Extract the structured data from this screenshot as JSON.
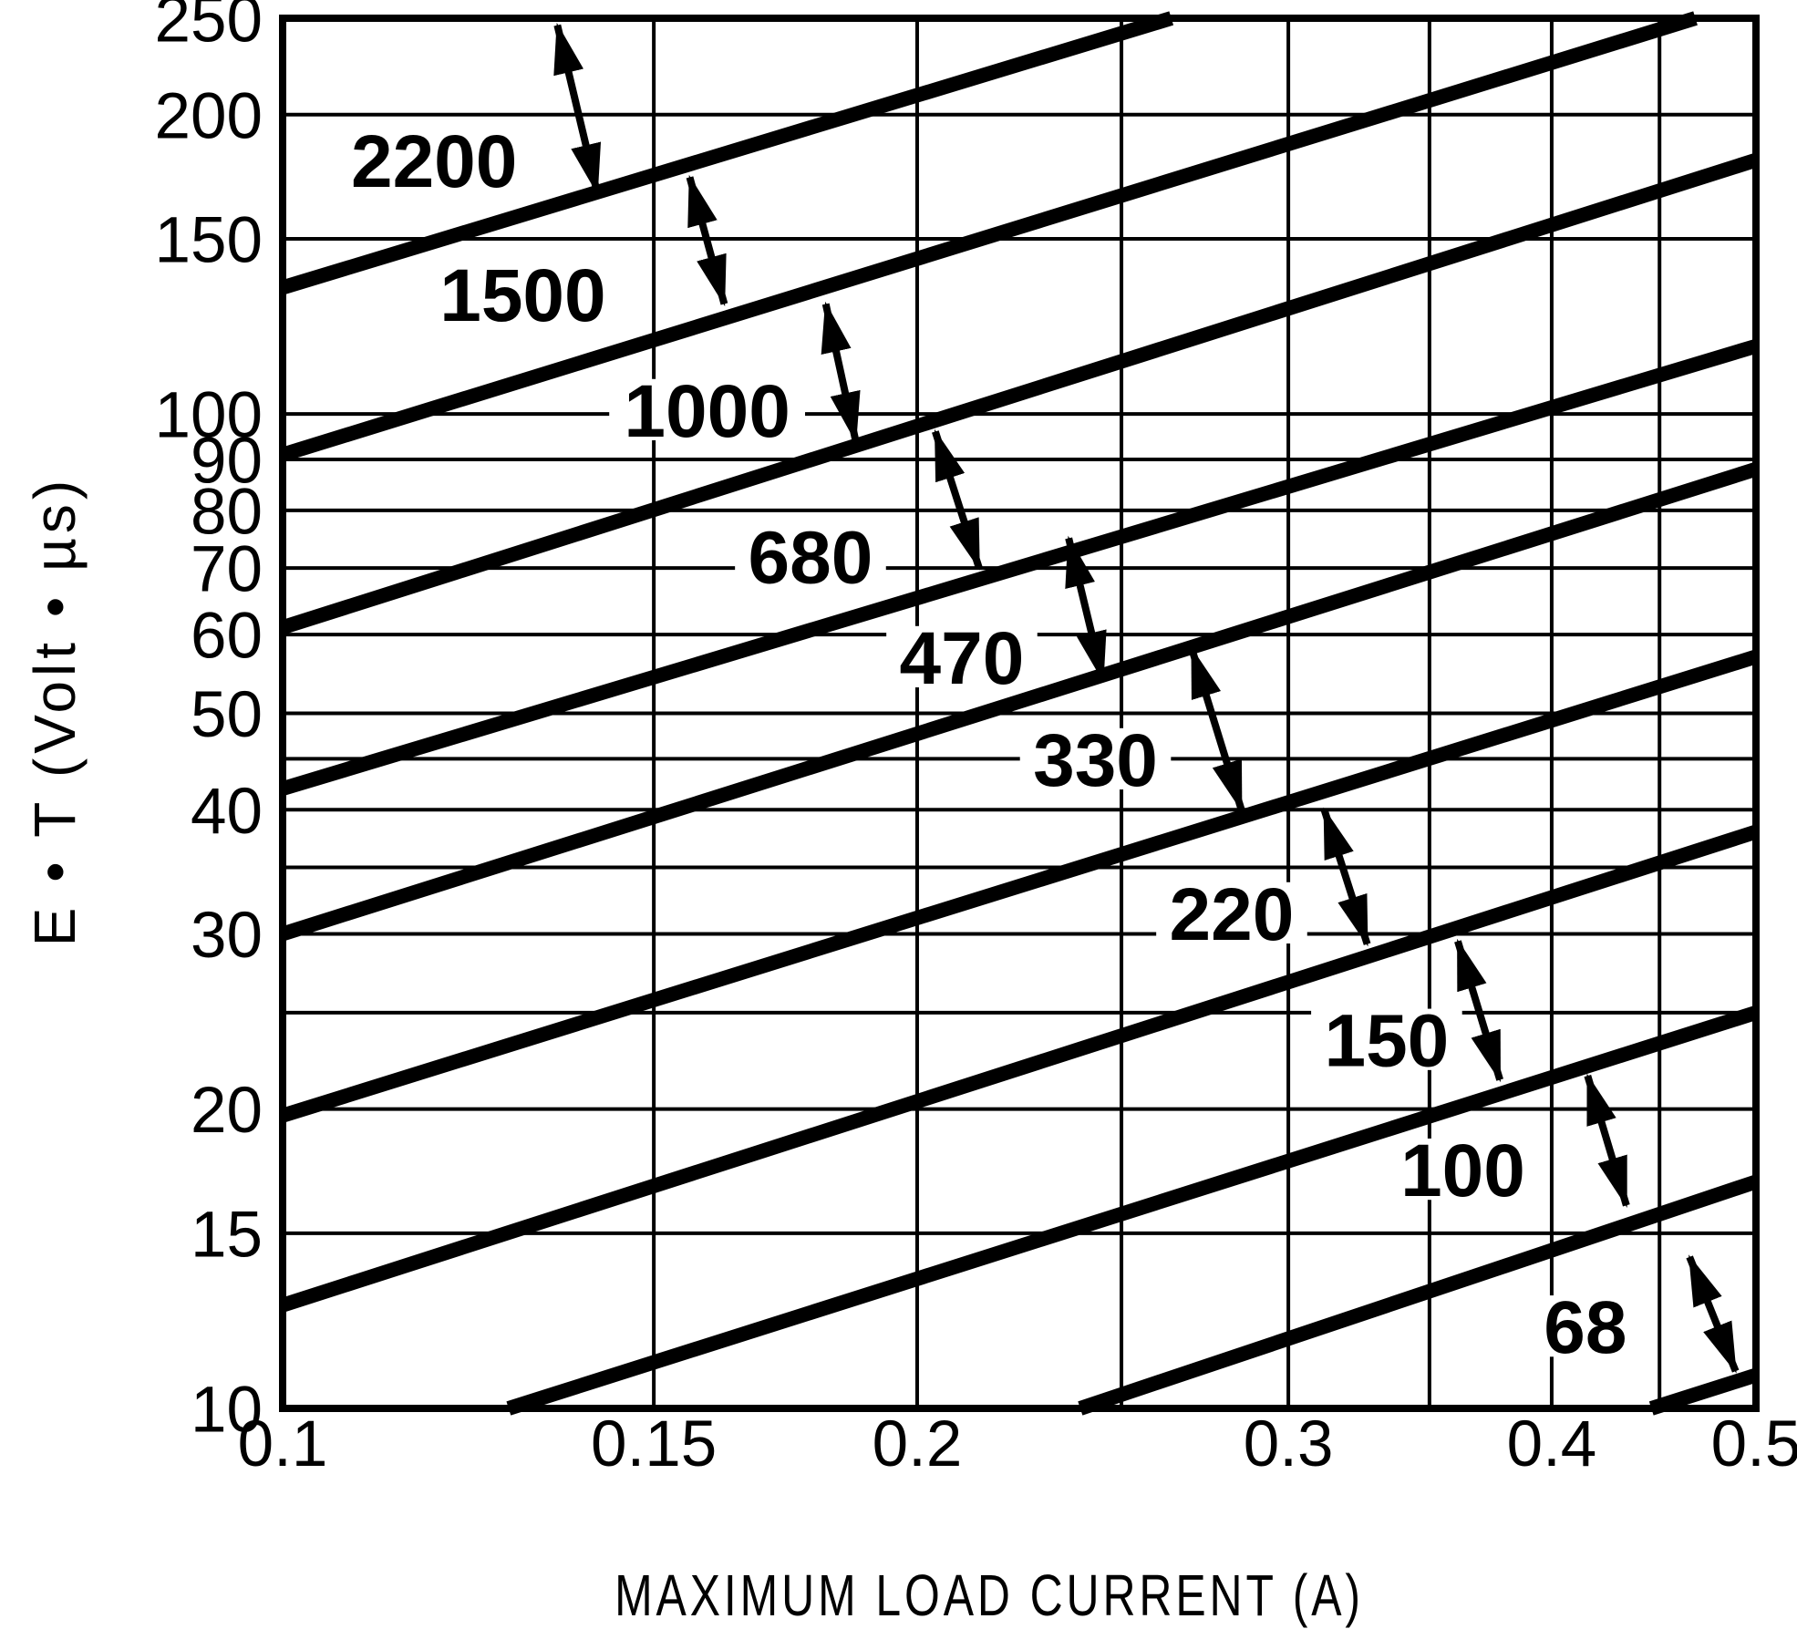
{
  "page": {
    "background": "#ffffff",
    "ink": "#000000"
  },
  "chart_data": {
    "type": "line",
    "title": "",
    "xlabel": "MAXIMUM LOAD CURRENT (A)",
    "ylabel": "E • T (Volt • µs)",
    "x_scale": "log",
    "y_scale": "log",
    "xlim": [
      0.1,
      0.5
    ],
    "ylim": [
      10,
      250
    ],
    "grid": "on",
    "legend": "inline-labels-with-arrows",
    "x_ticks": [
      {
        "v": 0.1,
        "label": "0.1"
      },
      {
        "v": 0.15,
        "label": "0.15"
      },
      {
        "v": 0.2,
        "label": "0.2"
      },
      {
        "v": 0.3,
        "label": "0.3"
      },
      {
        "v": 0.4,
        "label": "0.4"
      },
      {
        "v": 0.5,
        "label": "0.5"
      }
    ],
    "y_ticks": [
      {
        "v": 250,
        "label": "250"
      },
      {
        "v": 200,
        "label": "200"
      },
      {
        "v": 150,
        "label": "150"
      },
      {
        "v": 100,
        "label": "100"
      },
      {
        "v": 90,
        "label": "90"
      },
      {
        "v": 80,
        "label": "80"
      },
      {
        "v": 70,
        "label": "70"
      },
      {
        "v": 60,
        "label": "60"
      },
      {
        "v": 50,
        "label": "50"
      },
      {
        "v": 40,
        "label": "40"
      },
      {
        "v": 30,
        "label": "30"
      },
      {
        "v": 20,
        "label": "20"
      },
      {
        "v": 15,
        "label": "15"
      },
      {
        "v": 10,
        "label": "10"
      }
    ],
    "x_gridlines": [
      0.15,
      0.2,
      0.25,
      0.3,
      0.35,
      0.4,
      0.45
    ],
    "y_gridlines": [
      15,
      20,
      25,
      30,
      35,
      40,
      45,
      50,
      60,
      70,
      80,
      90,
      100,
      150,
      200
    ],
    "series": [
      {
        "name": "2200",
        "inductance_uH": 2200,
        "points": [
          [
            0.1,
            134
          ],
          [
            0.264,
            250
          ]
        ],
        "label_at": [
          0.118,
          180
        ]
      },
      {
        "name": "1500",
        "inductance_uH": 1500,
        "points": [
          [
            0.1,
            91
          ],
          [
            0.468,
            250
          ]
        ],
        "label_at": [
          0.13,
          132
        ]
      },
      {
        "name": "1000",
        "inductance_uH": 1000,
        "points": [
          [
            0.1,
            61
          ],
          [
            0.5,
            180
          ]
        ],
        "label_at": [
          0.159,
          101
        ]
      },
      {
        "name": "680",
        "inductance_uH": 680,
        "points": [
          [
            0.1,
            42
          ],
          [
            0.5,
            117
          ]
        ],
        "label_at": [
          0.178,
          72
        ]
      },
      {
        "name": "470",
        "inductance_uH": 470,
        "points": [
          [
            0.1,
            30
          ],
          [
            0.5,
            88
          ]
        ],
        "label_at": [
          0.21,
          57
        ]
      },
      {
        "name": "330",
        "inductance_uH": 330,
        "points": [
          [
            0.1,
            19.7
          ],
          [
            0.5,
            57
          ]
        ],
        "label_at": [
          0.243,
          45
        ]
      },
      {
        "name": "220",
        "inductance_uH": 220,
        "points": [
          [
            0.1,
            12.7
          ],
          [
            0.5,
            38
          ]
        ],
        "label_at": [
          0.282,
          31.5
        ]
      },
      {
        "name": "150",
        "inductance_uH": 150,
        "points": [
          [
            0.128,
            10
          ],
          [
            0.5,
            25
          ]
        ],
        "label_at": [
          0.334,
          23.5
        ]
      },
      {
        "name": "100",
        "inductance_uH": 100,
        "points": [
          [
            0.239,
            10
          ],
          [
            0.5,
            16.9
          ]
        ],
        "label_at": [
          0.363,
          17.4
        ]
      },
      {
        "name": "68",
        "inductance_uH": 68,
        "points": [
          [
            0.446,
            10
          ],
          [
            0.5,
            10.8
          ]
        ],
        "label_at": [
          0.415,
          12.1
        ]
      }
    ],
    "callout_arrows": [
      {
        "from": [
          0.135,
          246
        ],
        "to": [
          0.141,
          167
        ]
      },
      {
        "from": [
          0.156,
          173
        ],
        "to": [
          0.162,
          129
        ]
      },
      {
        "from": [
          0.181,
          129
        ],
        "to": [
          0.187,
          94
        ]
      },
      {
        "from": [
          0.204,
          96
        ],
        "to": [
          0.214,
          70
        ]
      },
      {
        "from": [
          0.236,
          75
        ],
        "to": [
          0.245,
          54
        ]
      },
      {
        "from": [
          0.27,
          58
        ],
        "to": [
          0.285,
          40
        ]
      },
      {
        "from": [
          0.312,
          40
        ],
        "to": [
          0.327,
          29.3
        ]
      },
      {
        "from": [
          0.361,
          29.5
        ],
        "to": [
          0.378,
          21.4
        ]
      },
      {
        "from": [
          0.416,
          21.6
        ],
        "to": [
          0.434,
          16.0
        ]
      },
      {
        "from": [
          0.465,
          14.2
        ],
        "to": [
          0.489,
          10.9
        ]
      }
    ]
  }
}
